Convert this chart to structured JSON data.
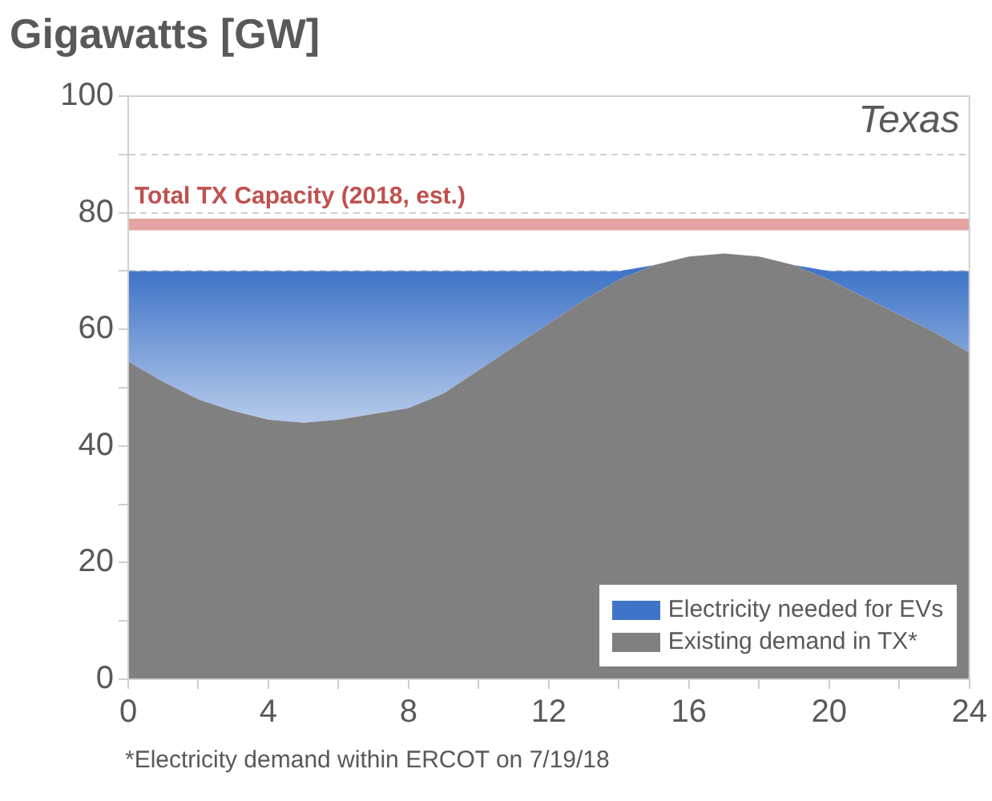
{
  "chart_data": {
    "type": "area",
    "ylabel": "Gigawatts [GW]",
    "stacked": true,
    "x": [
      0,
      1,
      2,
      3,
      4,
      5,
      6,
      7,
      8,
      9,
      10,
      11,
      12,
      13,
      14,
      15,
      16,
      17,
      18,
      19,
      20,
      21,
      22,
      23,
      24
    ],
    "series": [
      {
        "name": "Existing demand in TX*",
        "color": "#808080",
        "values": [
          54.5,
          51,
          48,
          46,
          44.5,
          44,
          44.5,
          45.5,
          46.5,
          49,
          53,
          57,
          61,
          65,
          68.5,
          71,
          72.5,
          73,
          72.5,
          71,
          68.5,
          65.5,
          62.5,
          59.5,
          56
        ]
      },
      {
        "name": "Electricity needed for EVs",
        "color": "#3f74c8",
        "values": [
          15.5,
          19,
          22,
          24,
          25.5,
          26,
          25.5,
          24.5,
          23.5,
          21,
          17,
          13,
          9,
          5,
          1.5,
          0,
          0,
          0,
          0,
          0,
          1.5,
          4.5,
          7.5,
          10.5,
          14
        ]
      }
    ],
    "xlim": [
      0,
      24
    ],
    "xticks": [
      0,
      {
        "value": 2,
        "label": null
      },
      4,
      {
        "value": 6,
        "label": null
      },
      8,
      {
        "value": 10,
        "label": null
      },
      12,
      {
        "value": 14,
        "label": null
      },
      16,
      {
        "value": 18,
        "label": null
      },
      20,
      {
        "value": 22,
        "label": null
      },
      24
    ],
    "ylim": [
      0,
      100
    ],
    "yticks": [
      0,
      {
        "value": 10,
        "label": null
      },
      20,
      {
        "value": 30,
        "label": null
      },
      40,
      {
        "value": 50,
        "label": null
      },
      60,
      {
        "value": 70,
        "label": null
      },
      80,
      {
        "value": 90,
        "label": null
      },
      100
    ],
    "bands": [
      {
        "axis": "y",
        "from": 77,
        "to": 79,
        "label": "Total TX Capacity (2018, est.)",
        "color": "#e6a3a3"
      }
    ],
    "annotations": [
      "Texas",
      "*Electricity demand within ERCOT on 7/19/18"
    ],
    "grid": "y",
    "legend": "bottom right"
  }
}
